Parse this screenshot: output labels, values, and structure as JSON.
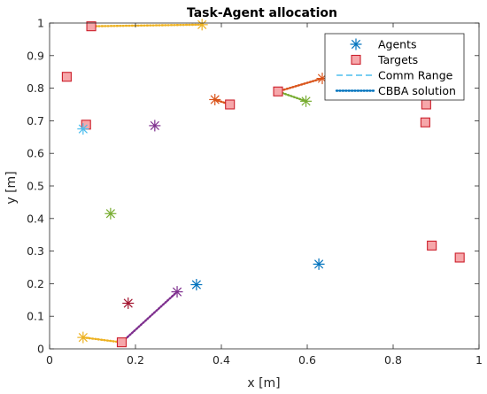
{
  "chart_data": {
    "type": "scatter",
    "title": "Task-Agent allocation",
    "xlabel": "x [m]",
    "ylabel": "y [m]",
    "xlim": [
      0,
      1
    ],
    "ylim": [
      0,
      1
    ],
    "xticks": [
      "0",
      "0.2",
      "0.4",
      "0.6",
      "0.8",
      "1"
    ],
    "yticks": [
      "0",
      "0.1",
      "0.2",
      "0.3",
      "0.4",
      "0.5",
      "0.6",
      "0.7",
      "0.8",
      "0.9",
      "1"
    ],
    "grid": false,
    "legend_position": "top-right",
    "legend": [
      {
        "label": "Agents",
        "marker": "asterisk",
        "color": "#0072BD"
      },
      {
        "label": "Targets",
        "marker": "square",
        "color": "#e8484e"
      },
      {
        "label": "Comm Range",
        "marker": "dashed-line",
        "color": "#4DBEEE"
      },
      {
        "label": "CBBA solution",
        "marker": "dotted-line",
        "color": "#0072BD"
      }
    ],
    "agents": [
      {
        "x": 0.355,
        "y": 0.995,
        "color": "#EDB120"
      },
      {
        "x": 0.078,
        "y": 0.675,
        "color": "#4DBEEE"
      },
      {
        "x": 0.245,
        "y": 0.685,
        "color": "#7E2F8E"
      },
      {
        "x": 0.385,
        "y": 0.765,
        "color": "#D95319"
      },
      {
        "x": 0.635,
        "y": 0.83,
        "color": "#D95319"
      },
      {
        "x": 0.597,
        "y": 0.76,
        "color": "#77AC30"
      },
      {
        "x": 0.142,
        "y": 0.415,
        "color": "#77AC30"
      },
      {
        "x": 0.627,
        "y": 0.26,
        "color": "#0072BD"
      },
      {
        "x": 0.342,
        "y": 0.197,
        "color": "#0072BD"
      },
      {
        "x": 0.297,
        "y": 0.175,
        "color": "#7E2F8E"
      },
      {
        "x": 0.183,
        "y": 0.14,
        "color": "#A2142F"
      },
      {
        "x": 0.078,
        "y": 0.035,
        "color": "#EDB120"
      }
    ],
    "targets": [
      {
        "x": 0.097,
        "y": 0.99
      },
      {
        "x": 0.04,
        "y": 0.835
      },
      {
        "x": 0.085,
        "y": 0.688
      },
      {
        "x": 0.42,
        "y": 0.75
      },
      {
        "x": 0.532,
        "y": 0.79
      },
      {
        "x": 0.877,
        "y": 0.75
      },
      {
        "x": 0.875,
        "y": 0.695
      },
      {
        "x": 0.89,
        "y": 0.317
      },
      {
        "x": 0.955,
        "y": 0.28
      },
      {
        "x": 0.168,
        "y": 0.02
      }
    ],
    "cbba_paths": [
      {
        "color": "#EDB120",
        "points": [
          [
            0.355,
            0.995
          ],
          [
            0.097,
            0.99
          ]
        ]
      },
      {
        "color": "#D95319",
        "points": [
          [
            0.385,
            0.765
          ],
          [
            0.42,
            0.75
          ]
        ]
      },
      {
        "color": "#D95319",
        "points": [
          [
            0.635,
            0.83
          ],
          [
            0.532,
            0.79
          ]
        ]
      },
      {
        "color": "#77AC30",
        "points": [
          [
            0.597,
            0.76
          ],
          [
            0.532,
            0.79
          ]
        ]
      },
      {
        "color": "#7E2F8E",
        "points": [
          [
            0.297,
            0.175
          ],
          [
            0.168,
            0.02
          ]
        ]
      },
      {
        "color": "#EDB120",
        "points": [
          [
            0.078,
            0.035
          ],
          [
            0.168,
            0.02
          ]
        ]
      }
    ]
  }
}
